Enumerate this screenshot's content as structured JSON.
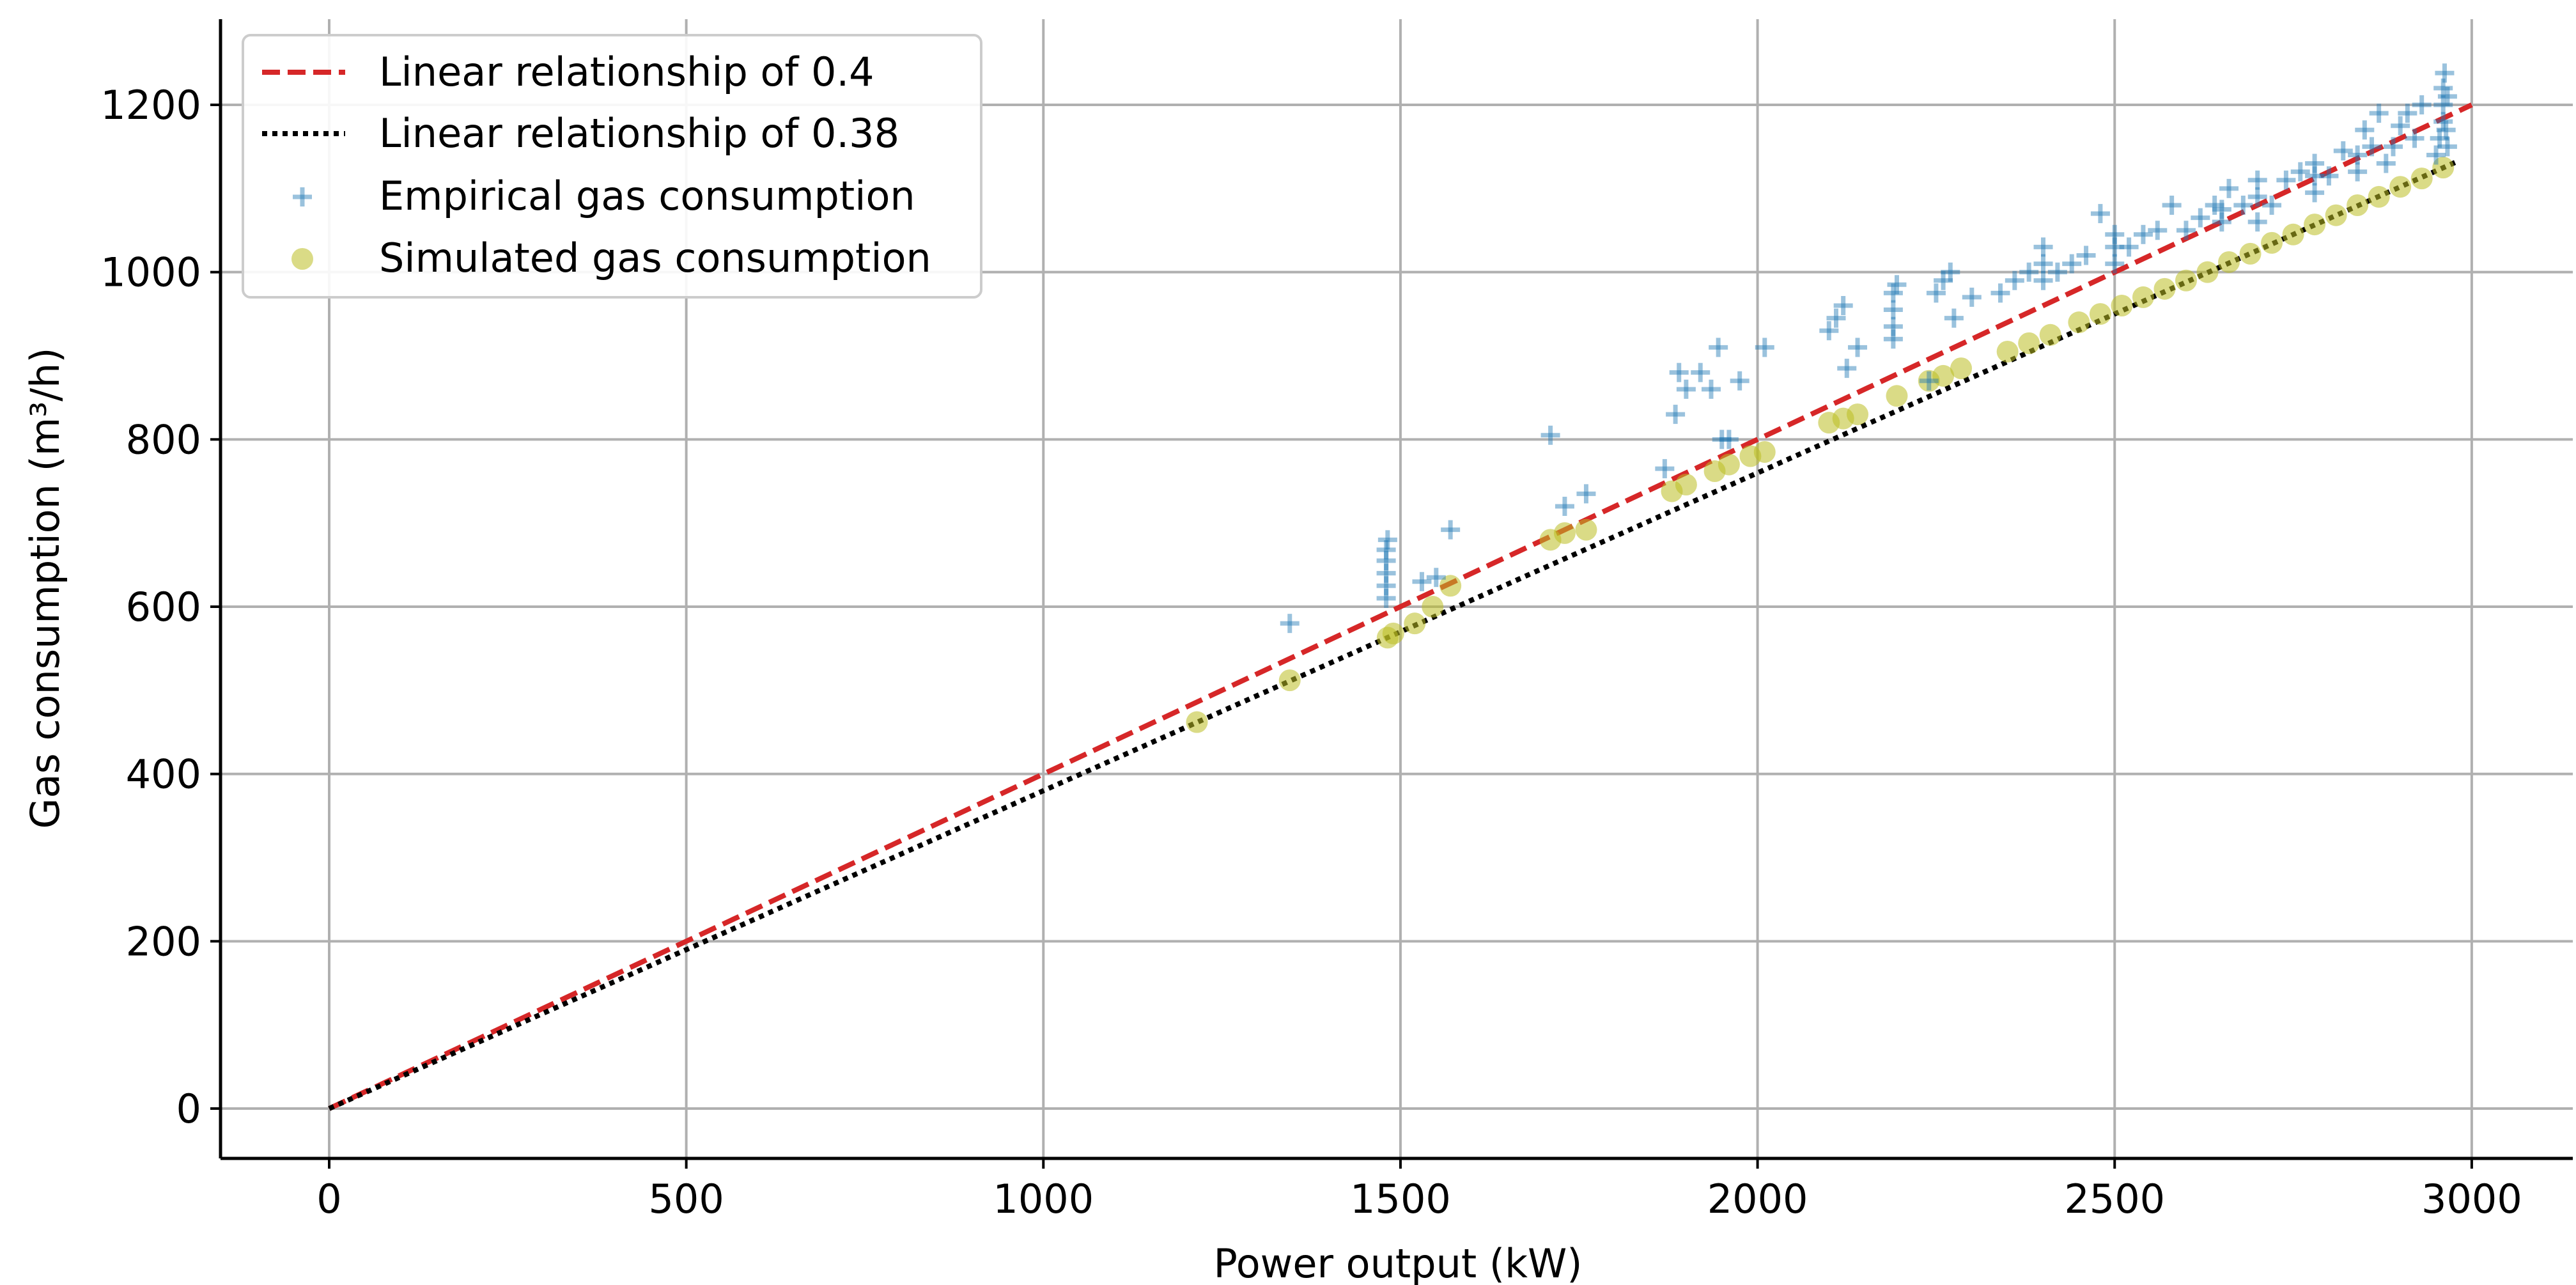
{
  "chart_data": {
    "type": "scatter",
    "title": "",
    "xlabel": "Power output (kW)",
    "ylabel": "Gas consumption (m³/h)",
    "xlim": [
      -150,
      3150
    ],
    "ylim": [
      -60,
      1300
    ],
    "xticks": [
      0,
      500,
      1000,
      1500,
      2000,
      2500,
      3000
    ],
    "yticks": [
      0,
      200,
      400,
      600,
      800,
      1000,
      1200
    ],
    "xtick_labels": [
      "0",
      "500",
      "1000",
      "1500",
      "2000",
      "2500",
      "3000"
    ],
    "ytick_labels": [
      "0",
      "200",
      "400",
      "600",
      "800",
      "1000",
      "1200"
    ],
    "grid": true,
    "legend_position": "top-left",
    "series": [
      {
        "name": "Linear relationship of 0.4",
        "kind": "line",
        "style": "dashed",
        "color": "#d62728",
        "x": [
          0,
          3000
        ],
        "y": [
          0,
          1200
        ]
      },
      {
        "name": "Linear relationship of 0.38",
        "kind": "line",
        "style": "dotted",
        "color": "#000000",
        "x": [
          0,
          2980
        ],
        "y": [
          0,
          1132.4
        ]
      },
      {
        "name": "Empirical gas consumption",
        "kind": "scatter",
        "marker": "plus",
        "color": "#1f77b4",
        "points": [
          [
            1345,
            580
          ],
          [
            1480,
            610
          ],
          [
            1480,
            625
          ],
          [
            1480,
            640
          ],
          [
            1480,
            655
          ],
          [
            1480,
            668
          ],
          [
            1482,
            680
          ],
          [
            1530,
            630
          ],
          [
            1550,
            635
          ],
          [
            1570,
            692
          ],
          [
            1710,
            805
          ],
          [
            1730,
            720
          ],
          [
            1760,
            735
          ],
          [
            1870,
            765
          ],
          [
            1885,
            830
          ],
          [
            1890,
            880
          ],
          [
            1900,
            860
          ],
          [
            1920,
            880
          ],
          [
            1935,
            860
          ],
          [
            1945,
            910
          ],
          [
            1950,
            800
          ],
          [
            1960,
            800
          ],
          [
            1975,
            870
          ],
          [
            2010,
            910
          ],
          [
            2100,
            930
          ],
          [
            2110,
            945
          ],
          [
            2120,
            960
          ],
          [
            2125,
            885
          ],
          [
            2140,
            910
          ],
          [
            2190,
            920
          ],
          [
            2190,
            935
          ],
          [
            2190,
            955
          ],
          [
            2190,
            975
          ],
          [
            2195,
            985
          ],
          [
            2240,
            870
          ],
          [
            2250,
            975
          ],
          [
            2260,
            990
          ],
          [
            2270,
            1000
          ],
          [
            2275,
            945
          ],
          [
            2300,
            970
          ],
          [
            2340,
            975
          ],
          [
            2360,
            990
          ],
          [
            2380,
            1000
          ],
          [
            2400,
            990
          ],
          [
            2400,
            1010
          ],
          [
            2400,
            1030
          ],
          [
            2420,
            1000
          ],
          [
            2440,
            1010
          ],
          [
            2460,
            1020
          ],
          [
            2480,
            1070
          ],
          [
            2500,
            1010
          ],
          [
            2500,
            1030
          ],
          [
            2500,
            1045
          ],
          [
            2520,
            1030
          ],
          [
            2540,
            1045
          ],
          [
            2560,
            1050
          ],
          [
            2580,
            1080
          ],
          [
            2600,
            1050
          ],
          [
            2620,
            1065
          ],
          [
            2640,
            1080
          ],
          [
            2650,
            1060
          ],
          [
            2650,
            1075
          ],
          [
            2660,
            1100
          ],
          [
            2680,
            1080
          ],
          [
            2700,
            1060
          ],
          [
            2700,
            1090
          ],
          [
            2700,
            1110
          ],
          [
            2720,
            1080
          ],
          [
            2740,
            1110
          ],
          [
            2760,
            1120
          ],
          [
            2780,
            1095
          ],
          [
            2780,
            1115
          ],
          [
            2780,
            1130
          ],
          [
            2800,
            1115
          ],
          [
            2820,
            1145
          ],
          [
            2840,
            1120
          ],
          [
            2840,
            1140
          ],
          [
            2850,
            1170
          ],
          [
            2860,
            1150
          ],
          [
            2870,
            1190
          ],
          [
            2880,
            1130
          ],
          [
            2890,
            1150
          ],
          [
            2900,
            1175
          ],
          [
            2910,
            1190
          ],
          [
            2920,
            1160
          ],
          [
            2930,
            1200
          ],
          [
            2950,
            1140
          ],
          [
            2955,
            1160
          ],
          [
            2960,
            1180
          ],
          [
            2960,
            1200
          ],
          [
            2960,
            1220
          ],
          [
            2962,
            1238
          ],
          [
            2964,
            1170
          ],
          [
            2966,
            1150
          ],
          [
            2966,
            1210
          ]
        ]
      },
      {
        "name": "Simulated gas consumption",
        "kind": "scatter",
        "marker": "circle",
        "color": "#bcbd22",
        "points": [
          [
            1215,
            462
          ],
          [
            1345,
            512
          ],
          [
            1482,
            563
          ],
          [
            1490,
            568
          ],
          [
            1520,
            580
          ],
          [
            1545,
            600
          ],
          [
            1570,
            625
          ],
          [
            1710,
            680
          ],
          [
            1730,
            688
          ],
          [
            1760,
            692
          ],
          [
            1880,
            738
          ],
          [
            1900,
            746
          ],
          [
            1940,
            762
          ],
          [
            1960,
            770
          ],
          [
            1990,
            780
          ],
          [
            2010,
            785
          ],
          [
            2100,
            820
          ],
          [
            2120,
            825
          ],
          [
            2140,
            830
          ],
          [
            2195,
            852
          ],
          [
            2240,
            870
          ],
          [
            2260,
            876
          ],
          [
            2285,
            885
          ],
          [
            2350,
            905
          ],
          [
            2380,
            915
          ],
          [
            2410,
            925
          ],
          [
            2450,
            940
          ],
          [
            2480,
            950
          ],
          [
            2510,
            960
          ],
          [
            2540,
            970
          ],
          [
            2570,
            980
          ],
          [
            2600,
            990
          ],
          [
            2630,
            1000
          ],
          [
            2660,
            1012
          ],
          [
            2690,
            1022
          ],
          [
            2720,
            1035
          ],
          [
            2750,
            1045
          ],
          [
            2780,
            1057
          ],
          [
            2810,
            1068
          ],
          [
            2840,
            1080
          ],
          [
            2870,
            1090
          ],
          [
            2900,
            1102
          ],
          [
            2930,
            1112
          ],
          [
            2960,
            1125
          ]
        ]
      }
    ]
  },
  "legend": {
    "items": [
      {
        "label": "Linear relationship of 0.4",
        "marker": "dashed-line",
        "color": "#d62728"
      },
      {
        "label": "Linear relationship of 0.38",
        "marker": "dotted-line",
        "color": "#000000"
      },
      {
        "label": "Empirical gas consumption",
        "marker": "plus",
        "color": "#1f77b4"
      },
      {
        "label": "Simulated gas consumption",
        "marker": "circle",
        "color": "#bcbd22"
      }
    ]
  }
}
